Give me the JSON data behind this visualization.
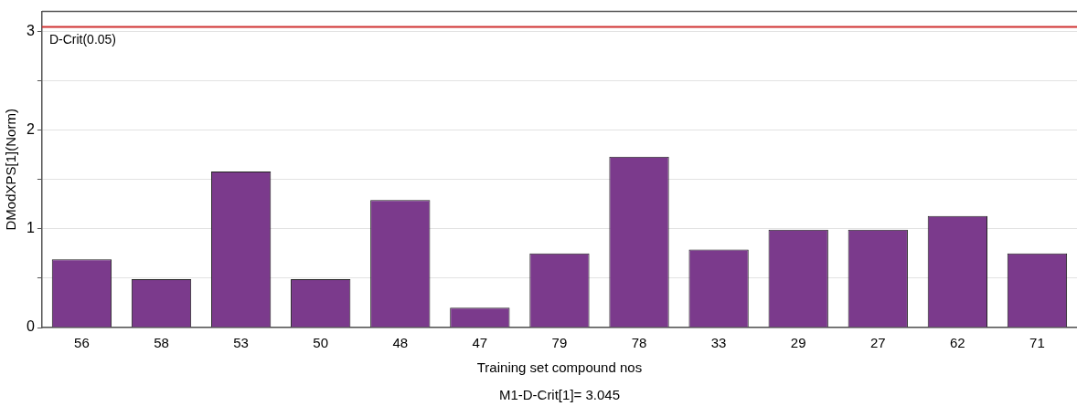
{
  "chart_data": {
    "type": "bar",
    "categories": [
      "56",
      "58",
      "53",
      "50",
      "48",
      "47",
      "79",
      "78",
      "33",
      "29",
      "27",
      "62",
      "71"
    ],
    "values": [
      0.69,
      0.49,
      1.58,
      0.49,
      1.29,
      0.2,
      0.75,
      1.73,
      0.79,
      0.99,
      0.99,
      1.13,
      0.75
    ],
    "color": "#7b3a8c",
    "xlabel": "Training set compound nos",
    "ylabel": "DModXPS[1](Norm)",
    "ylim": [
      0,
      3.2
    ],
    "yticks": [
      0,
      {
        "value": 0.5,
        "label": null
      },
      1,
      {
        "value": 1.5,
        "label": null
      },
      2,
      {
        "value": 2.5,
        "label": null
      },
      3
    ],
    "grid": "y",
    "ref_lines": [
      {
        "axis": "y",
        "value": 3.045,
        "label": "D-Crit(0.05)",
        "color": "#d03030"
      }
    ],
    "annotations": [
      "M1-D-Crit[1]= 3.045"
    ]
  }
}
